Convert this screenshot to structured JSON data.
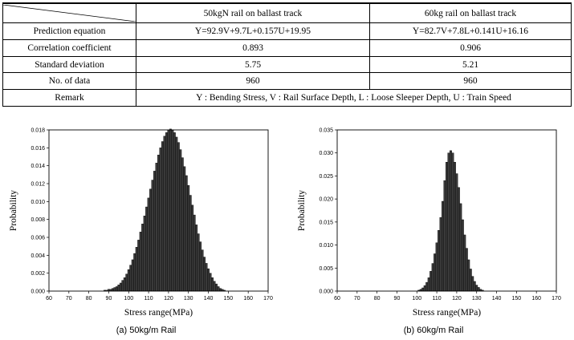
{
  "table": {
    "headers": [
      "",
      "50kgN rail on ballast track",
      "60kg rail on ballast track"
    ],
    "rows": [
      {
        "label": "Prediction equation",
        "a": "Y=92.9V+9.7L+0.157U+19.95",
        "b": "Y=82.7V+7.8L+0.141U+16.16"
      },
      {
        "label": "Correlation coefficient",
        "a": "0.893",
        "b": "0.906"
      },
      {
        "label": "Standard deviation",
        "a": "5.75",
        "b": "5.21"
      },
      {
        "label": "No. of data",
        "a": "960",
        "b": "960"
      }
    ],
    "remark_label": "Remark",
    "remark_text": "Y : Bending Stress, V : Rail Surface Depth, L : Loose Sleeper Depth, U : Train Speed"
  },
  "captions": {
    "left": "(a) 50kg/m Rail",
    "right": "(b) 60kg/m Rail"
  },
  "chart_data": [
    {
      "type": "bar",
      "xlabel": "Stress range(MPa)",
      "ylabel": "Probability",
      "xlim": [
        60,
        170
      ],
      "ylim": [
        0,
        0.019
      ],
      "xticks": [
        "60",
        "70",
        "80",
        "90",
        "100",
        "110",
        "120",
        "130",
        "140",
        "150",
        "160",
        "170"
      ],
      "yticks": [
        "0.000",
        "0.002",
        "0.004",
        "0.006",
        "0.008",
        "0.010",
        "0.012",
        "0.014",
        "0.016",
        "0.018"
      ],
      "x": [
        88,
        89,
        90,
        91,
        92,
        93,
        94,
        95,
        96,
        97,
        98,
        99,
        100,
        101,
        102,
        103,
        104,
        105,
        106,
        107,
        108,
        109,
        110,
        111,
        112,
        113,
        114,
        115,
        116,
        117,
        118,
        119,
        120,
        121,
        122,
        123,
        124,
        125,
        126,
        127,
        128,
        129,
        130,
        131,
        132,
        133,
        134,
        135,
        136,
        137,
        138,
        139,
        140,
        141,
        142,
        143,
        144,
        145,
        146,
        147,
        148
      ],
      "values": [
        0.0001,
        0.0001,
        0.0002,
        0.0002,
        0.0003,
        0.0004,
        0.0005,
        0.0007,
        0.0009,
        0.0012,
        0.0015,
        0.0019,
        0.0024,
        0.0029,
        0.0035,
        0.0042,
        0.0049,
        0.0057,
        0.0066,
        0.0075,
        0.0084,
        0.0094,
        0.0104,
        0.0114,
        0.0124,
        0.0134,
        0.0143,
        0.0152,
        0.016,
        0.0167,
        0.0173,
        0.0177,
        0.018,
        0.0181,
        0.018,
        0.0177,
        0.0172,
        0.0166,
        0.0158,
        0.0149,
        0.0139,
        0.0129,
        0.0118,
        0.0107,
        0.0096,
        0.0085,
        0.0074,
        0.0064,
        0.0055,
        0.0046,
        0.0038,
        0.0031,
        0.0025,
        0.002,
        0.0015,
        0.0011,
        0.0008,
        0.0005,
        0.0003,
        0.0002,
        0.0001
      ]
    },
    {
      "type": "bar",
      "xlabel": "Stress range(MPa)",
      "ylabel": "Probability",
      "xlim": [
        60,
        170
      ],
      "ylim": [
        0,
        0.035
      ],
      "xticks": [
        "60",
        "70",
        "80",
        "90",
        "100",
        "110",
        "120",
        "130",
        "140",
        "150",
        "160",
        "170"
      ],
      "yticks": [
        "0.000",
        "0.005",
        "0.010",
        "0.015",
        "0.020",
        "0.025",
        "0.030",
        "0.035"
      ],
      "x": [
        101,
        102,
        103,
        104,
        105,
        106,
        107,
        108,
        109,
        110,
        111,
        112,
        113,
        114,
        115,
        116,
        117,
        118,
        119,
        120,
        121,
        122,
        123,
        124,
        125,
        126,
        127,
        128,
        129,
        130,
        131,
        132,
        133
      ],
      "values": [
        0.0002,
        0.0004,
        0.0007,
        0.0012,
        0.0019,
        0.0029,
        0.0043,
        0.006,
        0.0081,
        0.0105,
        0.0132,
        0.016,
        0.0195,
        0.024,
        0.028,
        0.03,
        0.0305,
        0.03,
        0.028,
        0.0255,
        0.0225,
        0.019,
        0.0155,
        0.0122,
        0.0093,
        0.0068,
        0.0048,
        0.0032,
        0.0021,
        0.0013,
        0.0008,
        0.0004,
        0.0002
      ]
    }
  ]
}
